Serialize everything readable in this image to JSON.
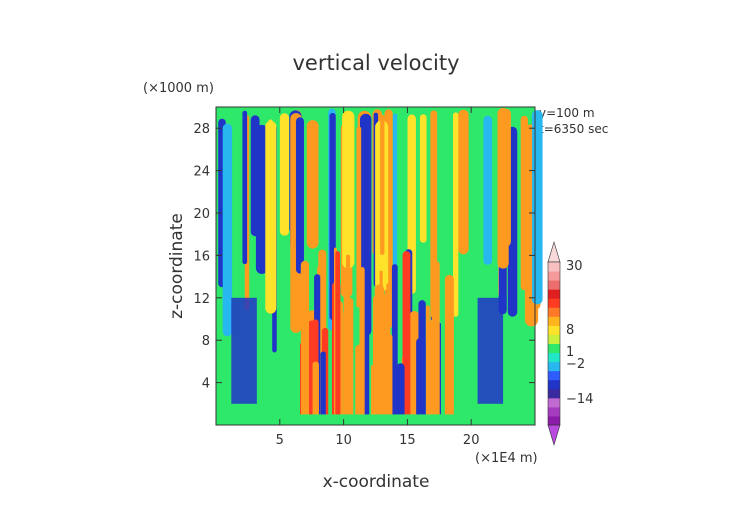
{
  "chart_data": {
    "type": "heatmap",
    "title": "vertical velocity",
    "xlabel": "x-coordinate",
    "ylabel": "z-coordinate",
    "x_unit": "(×1E4 m)",
    "y_unit": "(×1000 m)",
    "annotations": [
      "y=100 m",
      "t=6350 sec"
    ],
    "xlim": [
      0,
      25
    ],
    "ylim": [
      0,
      30
    ],
    "xticks": [
      5,
      10,
      15,
      20
    ],
    "yticks": [
      4,
      8,
      12,
      16,
      20,
      24,
      28
    ],
    "colorbar": {
      "tick_labels": [
        "30",
        "8",
        "1",
        "−2",
        "−14"
      ],
      "tick_values": [
        30,
        8,
        1,
        -2,
        -14
      ],
      "colors": [
        "#8a1ca8",
        "#a53cc0",
        "#c06ad2",
        "#3a2aa0",
        "#2034c8",
        "#2f5cff",
        "#28b8f0",
        "#22e6c8",
        "#2ee86a",
        "#c8f03c",
        "#ffe22a",
        "#ffb41e",
        "#ff7a28",
        "#ff3c22",
        "#e02020",
        "#ec6e6e",
        "#f49a9a",
        "#f8c0c0"
      ],
      "extend_colors": [
        "#b84ae0",
        "#f8d8d8"
      ]
    },
    "field_description_colors": {
      "background_low": "#2ee86a",
      "positive_core": "#ff3c22",
      "positive_mid": "#ff9a20",
      "neutral": "#ffe22a",
      "weak_negative": "#28b8f0",
      "negative": "#2034c8"
    }
  }
}
